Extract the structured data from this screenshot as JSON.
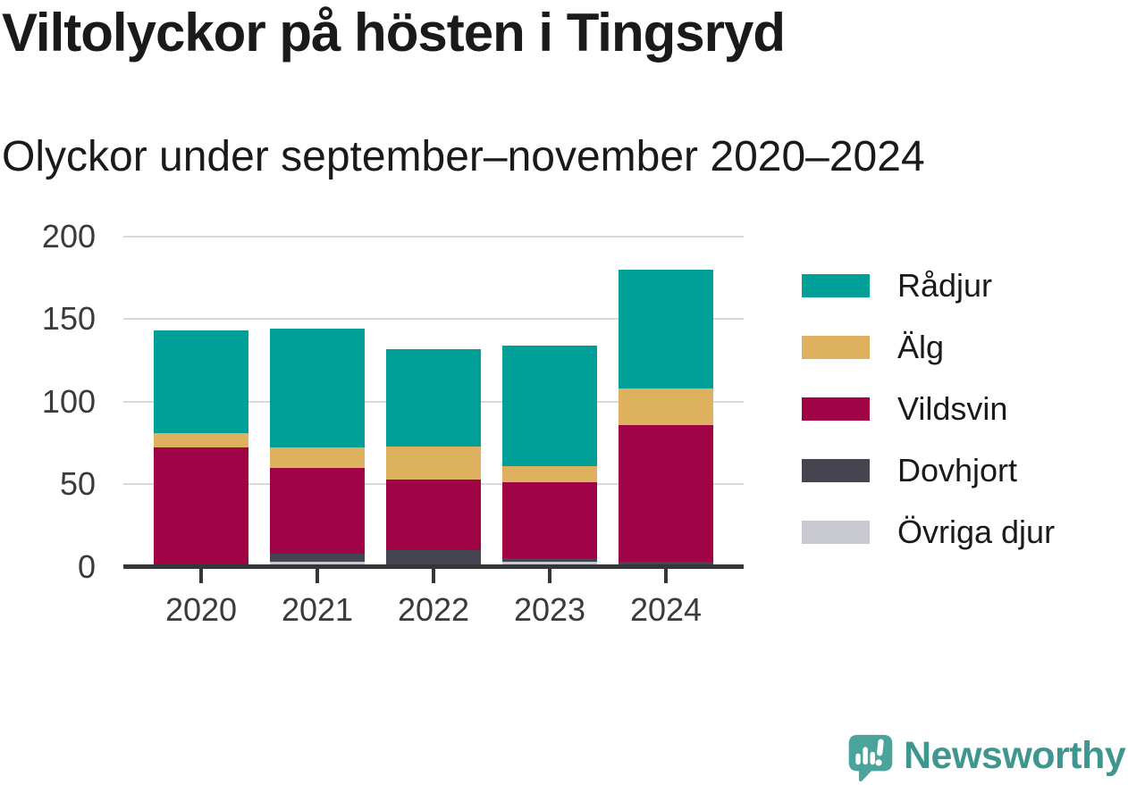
{
  "header": {
    "title": "Viltolyckor på hösten i Tingsryd",
    "subtitle": "Olyckor under september–november 2020–2024"
  },
  "chart_data": {
    "type": "bar",
    "stacked": true,
    "title": "Viltolyckor på hösten i Tingsryd",
    "subtitle": "Olyckor under september–november 2020–2024",
    "categories": [
      "2020",
      "2021",
      "2022",
      "2023",
      "2024"
    ],
    "series": [
      {
        "name": "Rådjur",
        "color": "#00a098",
        "values": [
          62,
          72,
          59,
          73,
          72
        ]
      },
      {
        "name": "Älg",
        "color": "#ddb15e",
        "values": [
          9,
          12,
          20,
          10,
          22
        ]
      },
      {
        "name": "Vildsvin",
        "color": "#a00447",
        "values": [
          72,
          52,
          43,
          46,
          83
        ]
      },
      {
        "name": "Dovhjort",
        "color": "#454450",
        "values": [
          0,
          5,
          10,
          2,
          2
        ]
      },
      {
        "name": "Övriga djur",
        "color": "#c9cad1",
        "values": [
          0,
          3,
          0,
          3,
          1
        ]
      }
    ],
    "stack_order_bottom_to_top": [
      "Övriga djur",
      "Dovhjort",
      "Vildsvin",
      "Älg",
      "Rådjur"
    ],
    "totals": [
      143,
      144,
      132,
      134,
      180
    ],
    "xlabel": "",
    "ylabel": "",
    "ylim": [
      0,
      200
    ],
    "yticks": [
      0,
      50,
      100,
      150,
      200
    ],
    "grid": "horizontal",
    "legend_position": "right"
  },
  "colors": {
    "grid": "#d9d9d9",
    "axis": "#35363a",
    "tick_label": "#3a3a3a",
    "title_text": "#1a1a1a",
    "logo_teal": "#3e968f",
    "logo_icon_teal": "#4aa49c"
  },
  "footer": {
    "logo_text": "Newsworthy"
  }
}
